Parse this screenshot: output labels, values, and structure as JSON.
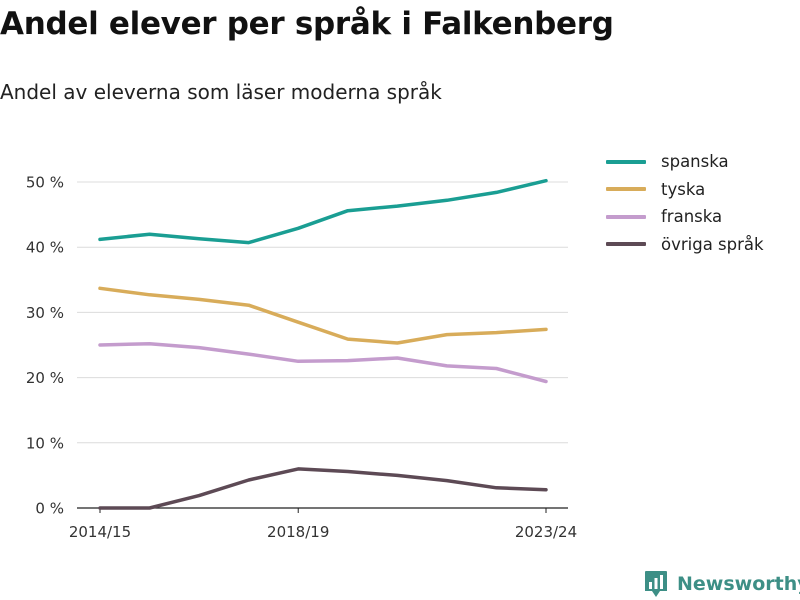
{
  "title": "Andel elever per språk i Falkenberg",
  "subtitle": "Andel av eleverna som läser moderna språk",
  "brand": {
    "name": "Newsworthy",
    "icon": "newsworthy-logo-icon",
    "color": "#3d8f86"
  },
  "chart_data": {
    "type": "line",
    "x": [
      0,
      1,
      2,
      3,
      4,
      5,
      6,
      7,
      8,
      9
    ],
    "x_tick_values": [
      0,
      4,
      9
    ],
    "x_tick_labels": [
      "2014/15",
      "2018/19",
      "2023/24"
    ],
    "ylim": [
      0,
      52
    ],
    "y_ticks": [
      0,
      10,
      20,
      30,
      40,
      50
    ],
    "y_tick_labels": [
      "0 %",
      "10 %",
      "20 %",
      "30 %",
      "40 %",
      "50 %"
    ],
    "grid": true,
    "legend_position": "right",
    "series": [
      {
        "name": "spanska",
        "color": "#1a9e93",
        "values": [
          41.2,
          42.0,
          41.3,
          40.7,
          42.9,
          45.6,
          46.3,
          47.2,
          48.4,
          50.2
        ]
      },
      {
        "name": "tyska",
        "color": "#d8ac5a",
        "values": [
          33.7,
          32.7,
          32.0,
          31.1,
          28.5,
          25.9,
          25.3,
          26.6,
          26.9,
          27.4
        ]
      },
      {
        "name": "franska",
        "color": "#c49ccd",
        "values": [
          25.0,
          25.2,
          24.6,
          23.6,
          22.5,
          22.6,
          23.0,
          21.8,
          21.4,
          19.4
        ]
      },
      {
        "name": "övriga språk",
        "color": "#5d4a55",
        "values": [
          0.0,
          0.0,
          1.9,
          4.3,
          6.0,
          5.6,
          5.0,
          4.2,
          3.1,
          2.8
        ]
      }
    ]
  }
}
